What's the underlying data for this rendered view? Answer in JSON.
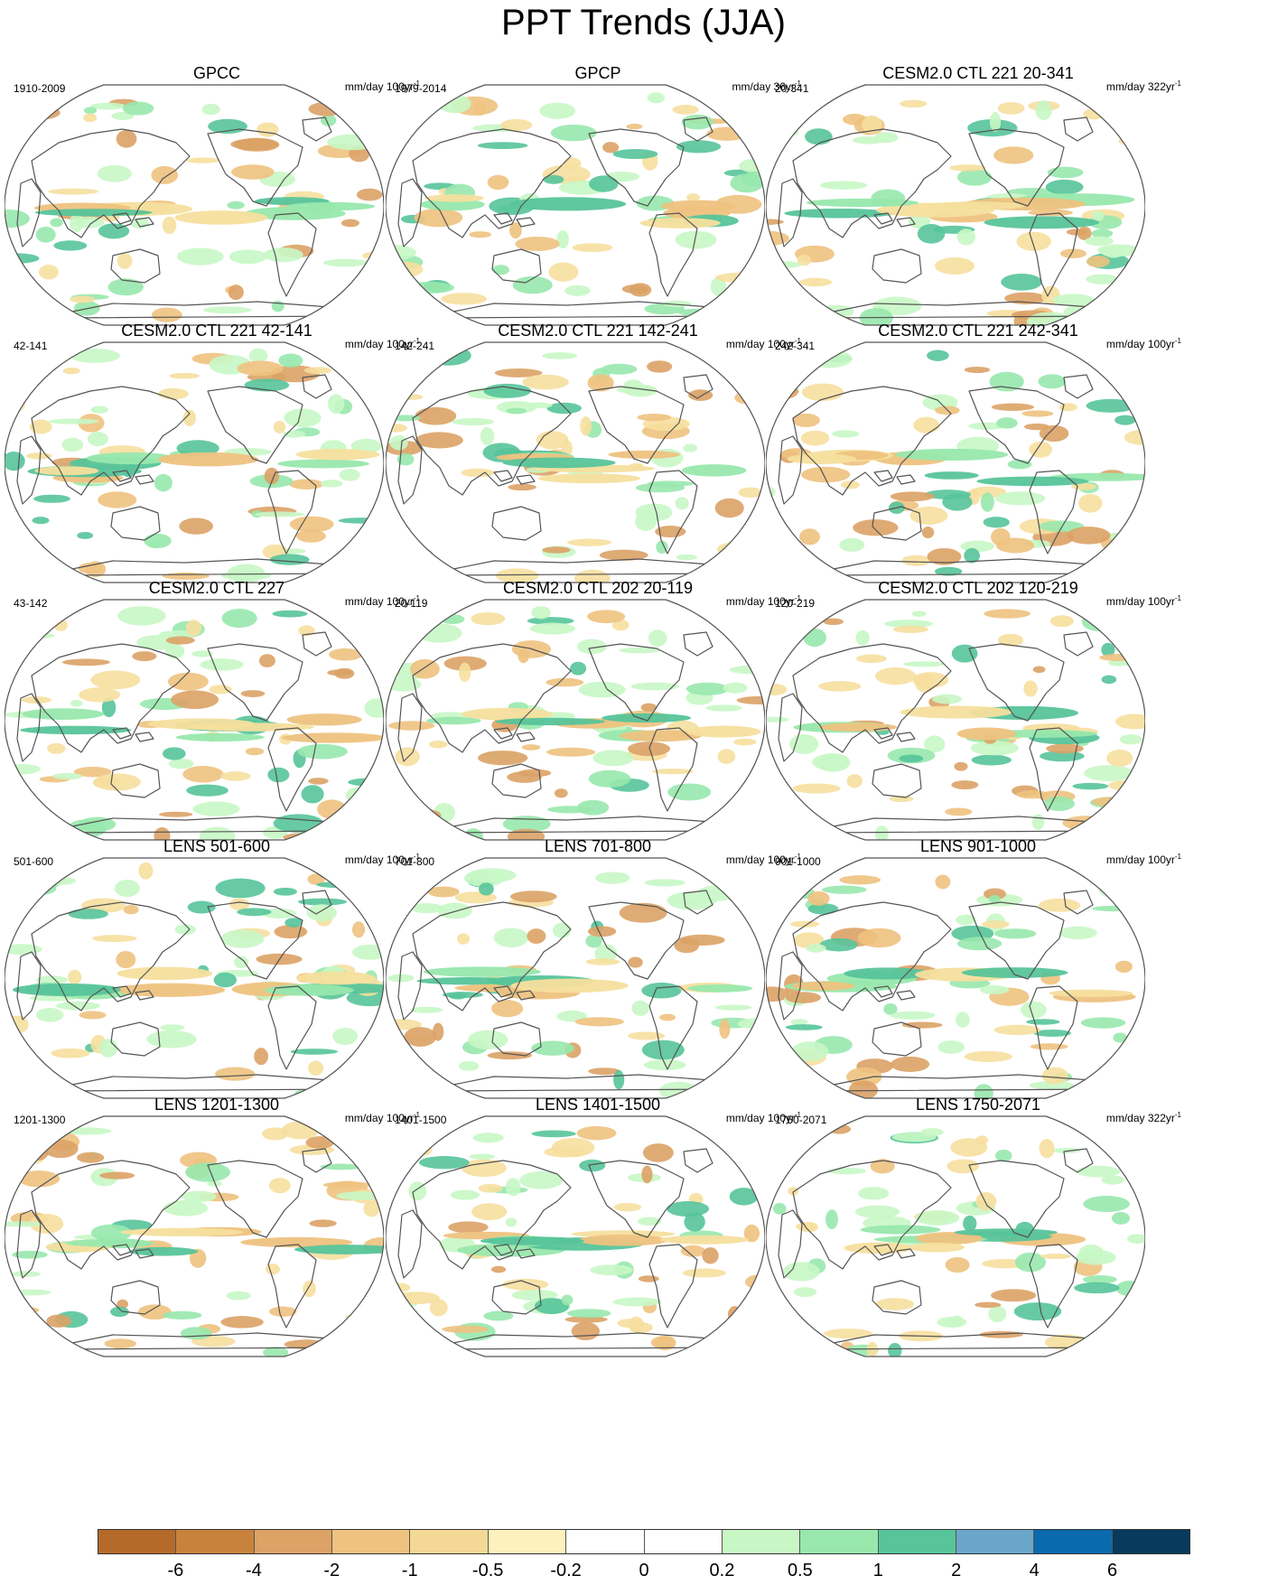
{
  "title": "PPT Trends (JJA)",
  "panels": [
    {
      "title": "GPCC",
      "period": "1910-2009",
      "units": "mm/day 100yr",
      "exponent": "-1"
    },
    {
      "title": "GPCP",
      "period": "1979-2014",
      "units": "mm/day 36yr",
      "exponent": "-1"
    },
    {
      "title": "CESM2.0 CTL 221 20-341",
      "period": "20-341",
      "units": "mm/day 322yr",
      "exponent": "-1"
    },
    {
      "title": "CESM2.0 CTL 221 42-141",
      "period": "42-141",
      "units": "mm/day 100yr",
      "exponent": "-1"
    },
    {
      "title": "CESM2.0 CTL 221 142-241",
      "period": "142-241",
      "units": "mm/day 100yr",
      "exponent": "-1"
    },
    {
      "title": "CESM2.0 CTL 221 242-341",
      "period": "242-341",
      "units": "mm/day 100yr",
      "exponent": "-1"
    },
    {
      "title": "CESM2.0 CTL 227",
      "period": "43-142",
      "units": "mm/day 100yr",
      "exponent": "-1"
    },
    {
      "title": "CESM2.0 CTL 202 20-119",
      "period": "20-119",
      "units": "mm/day 100yr",
      "exponent": "-1"
    },
    {
      "title": "CESM2.0 CTL 202 120-219",
      "period": "120-219",
      "units": "mm/day 100yr",
      "exponent": "-1"
    },
    {
      "title": "LENS 501-600",
      "period": "501-600",
      "units": "mm/day 100yr",
      "exponent": "-1"
    },
    {
      "title": "LENS 701-800",
      "period": "701-800",
      "units": "mm/day 100yr",
      "exponent": "-1"
    },
    {
      "title": "LENS 901-1000",
      "period": "901-1000",
      "units": "mm/day 100yr",
      "exponent": "-1"
    },
    {
      "title": "LENS 1201-1300",
      "period": "1201-1300",
      "units": "mm/day 100yr",
      "exponent": "-1"
    },
    {
      "title": "LENS 1401-1500",
      "period": "1401-1500",
      "units": "mm/day 100yr",
      "exponent": "-1"
    },
    {
      "title": "LENS 1750-2071",
      "period": "1750-2071",
      "units": "mm/day 322yr",
      "exponent": "-1"
    }
  ],
  "colorbar": {
    "colors": [
      "#b56a2a",
      "#c9823c",
      "#dca266",
      "#eec27f",
      "#f3d896",
      "#fdf2bd",
      "#ffffff",
      "#ffffff",
      "#c8f7c5",
      "#98e8ad",
      "#57c49a",
      "#6aa6c8",
      "#0a6aad",
      "#073a5c"
    ],
    "labels": [
      "-6",
      "-4",
      "-2",
      "-1",
      "-0.5",
      "-0.2",
      "0",
      "0.2",
      "0.5",
      "1",
      "2",
      "4",
      "6"
    ]
  },
  "colors": {
    "dry_strong": "#dca266",
    "dry": "#eec27f",
    "dry_weak": "#f6df9e",
    "wet_weak": "#c8f7c5",
    "wet": "#98e8ad",
    "wet_strong": "#57c49a",
    "wet_max": "#6aa6c8",
    "coast": "#555555"
  }
}
